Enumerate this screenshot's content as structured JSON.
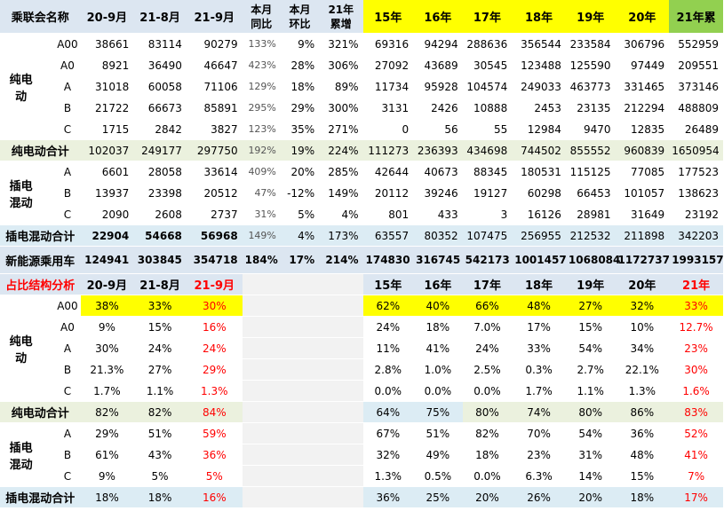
{
  "header": {
    "name": "乘联会名称",
    "c20_9": "20-9月",
    "c21_8": "21-8月",
    "c21_9": "21-9月",
    "yoy_1": "本月",
    "yoy_2": "同比",
    "mom_1": "本月",
    "mom_2": "环比",
    "cum_1": "21年",
    "cum_2": "累增",
    "y15": "15年",
    "y16": "16年",
    "y17": "17年",
    "y18": "18年",
    "y19": "19年",
    "y20": "20年",
    "y21": "21年累"
  },
  "groups": {
    "bev": [
      "纯电",
      "动"
    ],
    "phev": [
      "插电",
      "混动"
    ]
  },
  "rows": {
    "a00": {
      "label": "A00",
      "v": [
        "38661",
        "83114",
        "90279",
        "133%",
        "9%",
        "321%",
        "69316",
        "94294",
        "288636",
        "356544",
        "233584",
        "306796",
        "552959"
      ]
    },
    "a0": {
      "label": "A0",
      "v": [
        "8921",
        "36490",
        "46647",
        "423%",
        "28%",
        "306%",
        "27092",
        "43689",
        "30545",
        "123488",
        "125590",
        "97449",
        "209551"
      ]
    },
    "a": {
      "label": "A",
      "v": [
        "31018",
        "60058",
        "71106",
        "129%",
        "18%",
        "89%",
        "11734",
        "95928",
        "104574",
        "249033",
        "463773",
        "331465",
        "373146"
      ]
    },
    "b": {
      "label": "B",
      "v": [
        "21722",
        "66673",
        "85891",
        "295%",
        "29%",
        "300%",
        "3131",
        "2426",
        "10888",
        "2453",
        "23135",
        "212294",
        "488809"
      ]
    },
    "c": {
      "label": "C",
      "v": [
        "1715",
        "2842",
        "3827",
        "123%",
        "35%",
        "271%",
        "0",
        "56",
        "55",
        "12984",
        "9470",
        "12835",
        "26489"
      ]
    },
    "bev_total": {
      "label": "纯电动合计",
      "v": [
        "102037",
        "249177",
        "297750",
        "192%",
        "19%",
        "224%",
        "111273",
        "236393",
        "434698",
        "744502",
        "855552",
        "960839",
        "1650954"
      ]
    },
    "pa": {
      "label": "A",
      "v": [
        "6601",
        "28058",
        "33614",
        "409%",
        "20%",
        "285%",
        "42644",
        "40673",
        "88345",
        "180531",
        "115125",
        "77085",
        "177523"
      ]
    },
    "pb": {
      "label": "B",
      "v": [
        "13937",
        "23398",
        "20512",
        "47%",
        "-12%",
        "149%",
        "20112",
        "39246",
        "19127",
        "60298",
        "66453",
        "101057",
        "138623"
      ]
    },
    "pc": {
      "label": "C",
      "v": [
        "2090",
        "2608",
        "2737",
        "31%",
        "5%",
        "4%",
        "801",
        "433",
        "3",
        "16126",
        "28981",
        "31649",
        "23192"
      ]
    },
    "phev_total": {
      "label": "插电混动合计",
      "v": [
        "22904",
        "54668",
        "56968",
        "149%",
        "4%",
        "173%",
        "63557",
        "80352",
        "107475",
        "256955",
        "212532",
        "211898",
        "342203"
      ]
    },
    "nev_total": {
      "label": "新能源乘用车",
      "v": [
        "124941",
        "303845",
        "354718",
        "184%",
        "17%",
        "214%",
        "174830",
        "316745",
        "542173",
        "1001457",
        "1068084",
        "1172737",
        "1993157"
      ]
    }
  },
  "share_header": {
    "title": "占比结构分析",
    "c20_9": "20-9月",
    "c21_8": "21-8月",
    "c21_9": "21-9月",
    "y15": "15年",
    "y16": "16年",
    "y17": "17年",
    "y18": "18年",
    "y19": "19年",
    "y20": "20年",
    "y21": "21年"
  },
  "share": {
    "a00": {
      "label": "A00",
      "v": [
        "38%",
        "33%",
        "30%",
        "62%",
        "40%",
        "66%",
        "48%",
        "27%",
        "32%",
        "33%"
      ]
    },
    "a0": {
      "label": "A0",
      "v": [
        "9%",
        "15%",
        "16%",
        "24%",
        "18%",
        "7.0%",
        "17%",
        "15%",
        "10%",
        "12.7%"
      ]
    },
    "a": {
      "label": "A",
      "v": [
        "30%",
        "24%",
        "24%",
        "11%",
        "41%",
        "24%",
        "33%",
        "54%",
        "34%",
        "23%"
      ]
    },
    "b": {
      "label": "B",
      "v": [
        "21.3%",
        "27%",
        "29%",
        "2.8%",
        "1.0%",
        "2.5%",
        "0.3%",
        "2.7%",
        "22.1%",
        "30%"
      ]
    },
    "c": {
      "label": "C",
      "v": [
        "1.7%",
        "1.1%",
        "1.3%",
        "0.0%",
        "0.0%",
        "0.0%",
        "1.7%",
        "1.1%",
        "1.3%",
        "1.6%"
      ]
    },
    "bev_total": {
      "label": "纯电动合计",
      "v": [
        "82%",
        "82%",
        "84%",
        "64%",
        "75%",
        "80%",
        "74%",
        "80%",
        "86%",
        "83%"
      ]
    },
    "pa": {
      "label": "A",
      "v": [
        "29%",
        "51%",
        "59%",
        "67%",
        "51%",
        "82%",
        "70%",
        "54%",
        "36%",
        "52%"
      ]
    },
    "pb": {
      "label": "B",
      "v": [
        "61%",
        "43%",
        "36%",
        "32%",
        "49%",
        "18%",
        "23%",
        "31%",
        "48%",
        "41%"
      ]
    },
    "pc": {
      "label": "C",
      "v": [
        "9%",
        "5%",
        "5%",
        "1.3%",
        "0.5%",
        "0.0%",
        "6.3%",
        "14%",
        "15%",
        "7%"
      ]
    },
    "phev_total": {
      "label": "插电混动合计",
      "v": [
        "18%",
        "18%",
        "16%",
        "36%",
        "25%",
        "20%",
        "26%",
        "20%",
        "18%",
        "17%"
      ]
    }
  },
  "colors": {
    "header_blue": "#dce6f1",
    "highlight_yellow": "#ffff00",
    "cum_green": "#92d050",
    "emphasis_red": "#ff0000",
    "band_gray": "#f2f2f2"
  }
}
